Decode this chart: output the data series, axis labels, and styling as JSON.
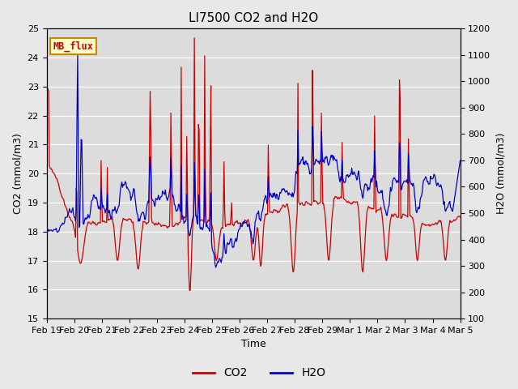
{
  "title": "LI7500 CO2 and H2O",
  "xlabel": "Time",
  "ylabel_left": "CO2 (mmol/m3)",
  "ylabel_right": "H2O (mmol/m3)",
  "ylim_left": [
    15.0,
    25.0
  ],
  "ylim_right": [
    100,
    1200
  ],
  "yticks_left": [
    15.0,
    16.0,
    17.0,
    18.0,
    19.0,
    20.0,
    21.0,
    22.0,
    23.0,
    24.0,
    25.0
  ],
  "yticks_right": [
    100,
    200,
    300,
    400,
    500,
    600,
    700,
    800,
    900,
    1000,
    1100,
    1200
  ],
  "xtick_labels": [
    "Feb 19",
    "Feb 20",
    "Feb 21",
    "Feb 22",
    "Feb 23",
    "Feb 24",
    "Feb 25",
    "Feb 26",
    "Feb 27",
    "Feb 28",
    "Feb 29",
    "Mar 1",
    "Mar 2",
    "Mar 3",
    "Mar 4",
    "Mar 5"
  ],
  "co2_color": "#cc0000",
  "h2o_color": "#0000cc",
  "fig_bg_color": "#e8e8e8",
  "plot_bg_color": "#dcdcdc",
  "annotation_text": "MB_flux",
  "annotation_bg": "#ffffcc",
  "annotation_border": "#cc8800",
  "annotation_text_color": "#cc0000",
  "legend_co2": "CO2",
  "legend_h2o": "H2O",
  "title_fontsize": 11,
  "axis_label_fontsize": 9,
  "tick_fontsize": 8,
  "n_points": 600
}
